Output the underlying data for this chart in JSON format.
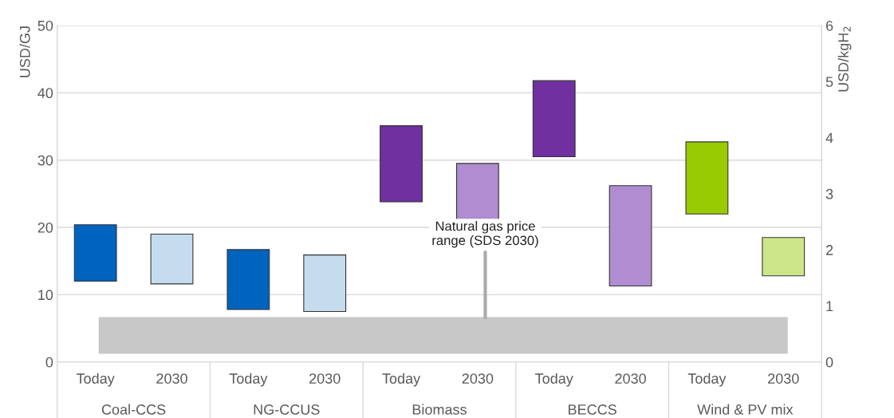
{
  "chart_data": {
    "type": "bar",
    "categories": [
      "Today",
      "2030",
      "Today",
      "2030",
      "Today",
      "2030",
      "Today",
      "2030",
      "Today",
      "2030"
    ],
    "values": [
      8.4,
      7.4,
      8.9,
      8.4,
      11.3,
      9.7,
      11.3,
      14.9,
      10.7,
      5.7
    ],
    "base": [
      12.0,
      11.6,
      7.8,
      7.5,
      23.8,
      19.8,
      30.5,
      11.3,
      22.0,
      12.8
    ],
    "colors": [
      "#0063be",
      "#c5dcef",
      "#0063be",
      "#c5dcef",
      "#7030a0",
      "#b08cd0",
      "#7030a0",
      "#b08cd0",
      "#99cc00",
      "#cde68a"
    ],
    "ylabel": "USD/GJ",
    "y2label": "USD/kgH$_{2}$",
    "ylim": [
      0,
      50
    ],
    "yticks": [
      0,
      10,
      20,
      30,
      40,
      50
    ],
    "y2lim": [
      0,
      6
    ],
    "y2ticks": [
      0,
      1,
      2,
      3,
      4,
      5,
      6
    ],
    "bands": [
      {
        "axis": "y",
        "from": 1.3,
        "to": 6.6,
        "label": "Natural gas price\nrange (SDS 2030)",
        "color": "#c8c8c8"
      }
    ],
    "annotations": [
      "Coal-CCS",
      "NG-CCUS",
      "Biomass",
      "BECCS",
      "Wind & PV mix"
    ],
    "grid": "y"
  }
}
